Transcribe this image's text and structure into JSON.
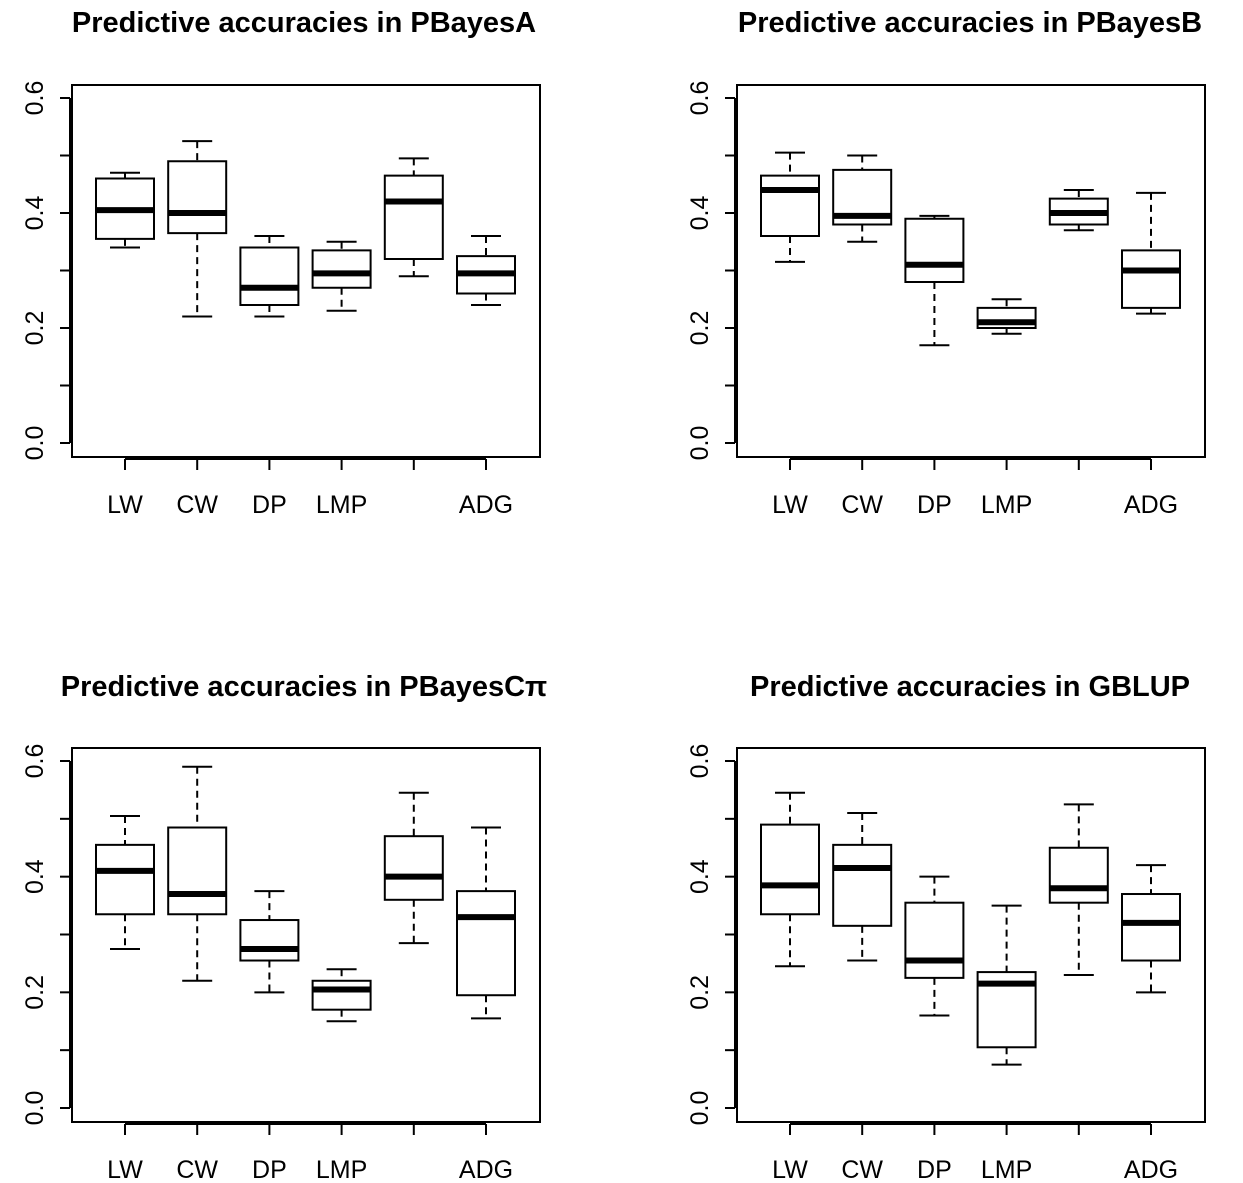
{
  "chart_data": [
    {
      "type": "box",
      "title": "Predictive accuracies in PBayesA",
      "categories": [
        "LW",
        "CW",
        "DP",
        "LMP",
        "",
        "ADG"
      ],
      "ylim": [
        0.0,
        0.6
      ],
      "yticks": [
        0.0,
        0.1,
        0.2,
        0.3,
        0.4,
        0.5,
        0.6
      ],
      "ytick_labels": [
        "0.0",
        "",
        "0.2",
        "",
        "0.4",
        "",
        "0.6"
      ],
      "grid": false,
      "boxes": [
        {
          "min": 0.34,
          "q1": 0.355,
          "median": 0.405,
          "q3": 0.46,
          "max": 0.47
        },
        {
          "min": 0.22,
          "q1": 0.365,
          "median": 0.4,
          "q3": 0.49,
          "max": 0.525
        },
        {
          "min": 0.22,
          "q1": 0.24,
          "median": 0.27,
          "q3": 0.34,
          "max": 0.36
        },
        {
          "min": 0.23,
          "q1": 0.27,
          "median": 0.295,
          "q3": 0.335,
          "max": 0.35
        },
        {
          "min": 0.29,
          "q1": 0.32,
          "median": 0.42,
          "q3": 0.465,
          "max": 0.495
        },
        {
          "min": 0.24,
          "q1": 0.26,
          "median": 0.295,
          "q3": 0.325,
          "max": 0.36
        }
      ]
    },
    {
      "type": "box",
      "title": "Predictive accuracies in PBayesB",
      "categories": [
        "LW",
        "CW",
        "DP",
        "LMP",
        "",
        "ADG"
      ],
      "ylim": [
        0.0,
        0.6
      ],
      "yticks": [
        0.0,
        0.1,
        0.2,
        0.3,
        0.4,
        0.5,
        0.6
      ],
      "ytick_labels": [
        "0.0",
        "",
        "0.2",
        "",
        "0.4",
        "",
        "0.6"
      ],
      "grid": false,
      "boxes": [
        {
          "min": 0.315,
          "q1": 0.36,
          "median": 0.44,
          "q3": 0.465,
          "max": 0.505
        },
        {
          "min": 0.35,
          "q1": 0.38,
          "median": 0.395,
          "q3": 0.475,
          "max": 0.5
        },
        {
          "min": 0.17,
          "q1": 0.28,
          "median": 0.31,
          "q3": 0.39,
          "max": 0.395
        },
        {
          "min": 0.19,
          "q1": 0.2,
          "median": 0.21,
          "q3": 0.235,
          "max": 0.25
        },
        {
          "min": 0.37,
          "q1": 0.38,
          "median": 0.4,
          "q3": 0.425,
          "max": 0.44
        },
        {
          "min": 0.225,
          "q1": 0.235,
          "median": 0.3,
          "q3": 0.335,
          "max": 0.435
        }
      ]
    },
    {
      "type": "box",
      "title": "Predictive accuracies in PBayesCπ",
      "categories": [
        "LW",
        "CW",
        "DP",
        "LMP",
        "",
        "ADG"
      ],
      "ylim": [
        0.0,
        0.6
      ],
      "yticks": [
        0.0,
        0.1,
        0.2,
        0.3,
        0.4,
        0.5,
        0.6
      ],
      "ytick_labels": [
        "0.0",
        "",
        "0.2",
        "",
        "0.4",
        "",
        "0.6"
      ],
      "grid": false,
      "boxes": [
        {
          "min": 0.275,
          "q1": 0.335,
          "median": 0.41,
          "q3": 0.455,
          "max": 0.505
        },
        {
          "min": 0.22,
          "q1": 0.335,
          "median": 0.37,
          "q3": 0.485,
          "max": 0.59
        },
        {
          "min": 0.2,
          "q1": 0.255,
          "median": 0.275,
          "q3": 0.325,
          "max": 0.375
        },
        {
          "min": 0.15,
          "q1": 0.17,
          "median": 0.205,
          "q3": 0.22,
          "max": 0.24
        },
        {
          "min": 0.285,
          "q1": 0.36,
          "median": 0.4,
          "q3": 0.47,
          "max": 0.545
        },
        {
          "min": 0.155,
          "q1": 0.195,
          "median": 0.33,
          "q3": 0.375,
          "max": 0.485
        }
      ]
    },
    {
      "type": "box",
      "title": "Predictive accuracies in GBLUP",
      "categories": [
        "LW",
        "CW",
        "DP",
        "LMP",
        "",
        "ADG"
      ],
      "ylim": [
        0.0,
        0.6
      ],
      "yticks": [
        0.0,
        0.1,
        0.2,
        0.3,
        0.4,
        0.5,
        0.6
      ],
      "ytick_labels": [
        "0.0",
        "",
        "0.2",
        "",
        "0.4",
        "",
        "0.6"
      ],
      "grid": false,
      "boxes": [
        {
          "min": 0.245,
          "q1": 0.335,
          "median": 0.385,
          "q3": 0.49,
          "max": 0.545
        },
        {
          "min": 0.255,
          "q1": 0.315,
          "median": 0.415,
          "q3": 0.455,
          "max": 0.51
        },
        {
          "min": 0.16,
          "q1": 0.225,
          "median": 0.255,
          "q3": 0.355,
          "max": 0.4
        },
        {
          "min": 0.075,
          "q1": 0.105,
          "median": 0.215,
          "q3": 0.235,
          "max": 0.35
        },
        {
          "min": 0.23,
          "q1": 0.355,
          "median": 0.38,
          "q3": 0.45,
          "max": 0.525
        },
        {
          "min": 0.2,
          "q1": 0.255,
          "median": 0.32,
          "q3": 0.37,
          "max": 0.42
        }
      ]
    }
  ]
}
